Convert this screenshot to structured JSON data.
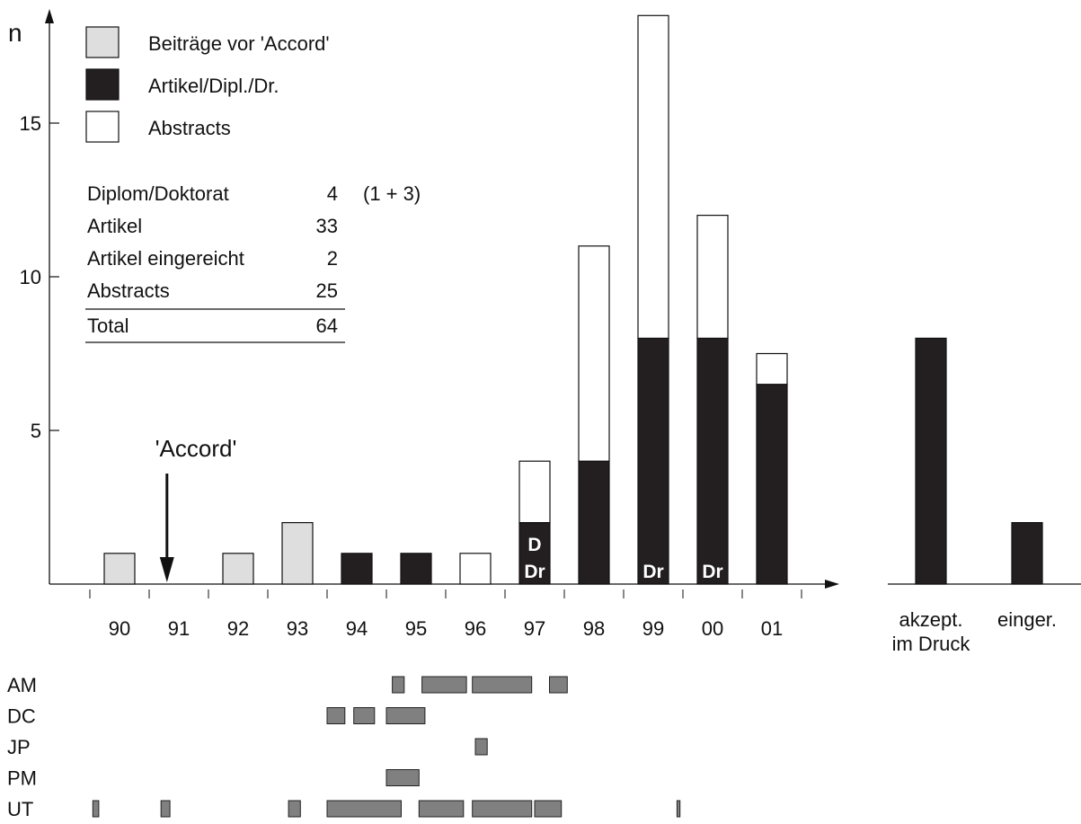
{
  "chart_data": {
    "type": "bar",
    "stacked": true,
    "ylabel": "n",
    "yticks": [
      5,
      10,
      15
    ],
    "ylim": [
      0,
      18.5
    ],
    "categories": [
      "90",
      "91",
      "92",
      "93",
      "94",
      "95",
      "96",
      "97",
      "98",
      "99",
      "00",
      "01"
    ],
    "series": [
      {
        "name": "Beiträge vor 'Accord'",
        "color": "#dedede",
        "values": [
          1,
          0,
          1,
          2,
          0,
          0,
          0,
          0,
          0,
          0,
          0,
          0
        ]
      },
      {
        "name": "Artikel/Dipl./Dr.",
        "color": "#231f20",
        "values": [
          0,
          0,
          0,
          0,
          1,
          1,
          0,
          2,
          4,
          8,
          8,
          6.5
        ]
      },
      {
        "name": "Abstracts",
        "color": "#ffffff",
        "values": [
          0,
          0,
          0,
          0,
          0,
          0,
          1,
          2,
          7,
          10.5,
          4,
          1
        ]
      }
    ],
    "bar_labels": [
      {
        "category": "97",
        "lines": [
          "D",
          "Dr"
        ]
      },
      {
        "category": "99",
        "lines": [
          "Dr"
        ]
      },
      {
        "category": "00",
        "lines": [
          "Dr"
        ]
      }
    ],
    "annotation": {
      "text": "'Accord'",
      "category_position": 91.3
    },
    "extra_bars": [
      {
        "label_lines": [
          "akzept.",
          "im Druck"
        ],
        "value": 8,
        "color": "#231f20"
      },
      {
        "label_lines": [
          "einger."
        ],
        "value": 2,
        "color": "#231f20"
      }
    ],
    "summary_table": {
      "rows": [
        {
          "label": "Diplom/Doktorat",
          "value": "4",
          "note": "(1 + 3)"
        },
        {
          "label": "Artikel",
          "value": "33",
          "note": ""
        },
        {
          "label": "Artikel eingereicht",
          "value": "2",
          "note": ""
        },
        {
          "label": "Abstracts",
          "value": "25",
          "note": ""
        }
      ],
      "total": {
        "label": "Total",
        "value": "64"
      }
    },
    "timeline": {
      "color": "#808080",
      "rows": [
        {
          "name": "AM",
          "spans": [
            [
              95.1,
              95.3
            ],
            [
              95.6,
              96.35
            ],
            [
              96.45,
              97.45
            ],
            [
              97.75,
              98.05
            ]
          ]
        },
        {
          "name": "DC",
          "spans": [
            [
              94.0,
              94.3
            ],
            [
              94.45,
              94.8
            ],
            [
              95.0,
              95.65
            ]
          ]
        },
        {
          "name": "JP",
          "spans": [
            [
              96.5,
              96.7
            ]
          ]
        },
        {
          "name": "PM",
          "spans": [
            [
              95.0,
              95.55
            ]
          ]
        },
        {
          "name": "UT",
          "spans": [
            [
              90.05,
              90.15
            ],
            [
              91.2,
              91.35
            ],
            [
              93.35,
              93.55
            ],
            [
              94.0,
              95.25
            ],
            [
              95.55,
              96.3
            ],
            [
              96.45,
              97.45
            ],
            [
              97.5,
              97.95
            ],
            [
              99.9,
              99.95
            ]
          ]
        }
      ]
    }
  }
}
